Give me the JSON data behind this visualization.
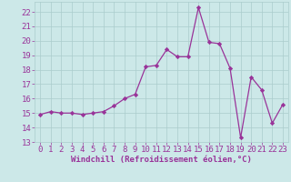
{
  "x": [
    0,
    1,
    2,
    3,
    4,
    5,
    6,
    7,
    8,
    9,
    10,
    11,
    12,
    13,
    14,
    15,
    16,
    17,
    18,
    19,
    20,
    21,
    22,
    23
  ],
  "y": [
    14.9,
    15.1,
    15.0,
    15.0,
    14.9,
    15.0,
    15.1,
    15.5,
    16.0,
    16.3,
    18.2,
    18.3,
    19.4,
    18.9,
    18.9,
    22.3,
    19.9,
    19.8,
    18.1,
    13.3,
    17.5,
    16.6,
    14.3,
    15.6
  ],
  "line_color": "#993399",
  "marker_color": "#993399",
  "bg_color": "#cce8e8",
  "grid_color": "#aacccc",
  "ylabel_ticks": [
    13,
    14,
    15,
    16,
    17,
    18,
    19,
    20,
    21,
    22
  ],
  "xlim": [
    -0.5,
    23.5
  ],
  "ylim": [
    13,
    22.7
  ],
  "xticks": [
    0,
    1,
    2,
    3,
    4,
    5,
    6,
    7,
    8,
    9,
    10,
    11,
    12,
    13,
    14,
    15,
    16,
    17,
    18,
    19,
    20,
    21,
    22,
    23
  ],
  "xlabel": "Windchill (Refroidissement éolien,°C)",
  "font_color": "#993399",
  "tick_fontsize": 6.5,
  "xlabel_fontsize": 6.5
}
